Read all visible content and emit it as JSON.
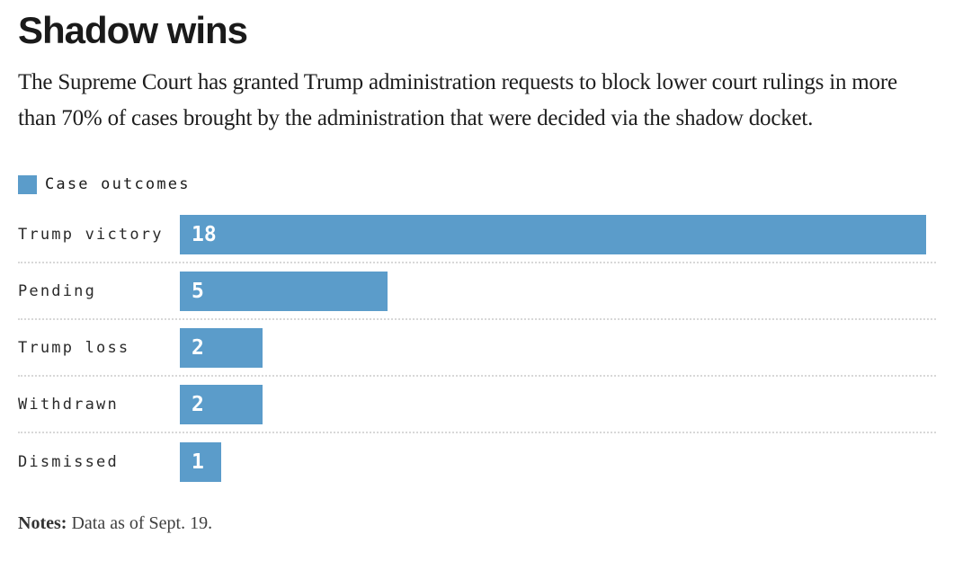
{
  "header": {
    "title": "Shadow wins",
    "subtitle": "The Supreme Court has granted Trump administration requests to block lower court rulings in more than 70% of cases brought by the administration that were decided via the shadow docket."
  },
  "legend": {
    "label": "Case outcomes",
    "swatch_color": "#5b9cca"
  },
  "chart_data": {
    "type": "bar",
    "orientation": "horizontal",
    "title": "Shadow wins",
    "categories": [
      "Trump victory",
      "Pending",
      "Trump loss",
      "Withdrawn",
      "Dismissed"
    ],
    "values": [
      18,
      5,
      2,
      2,
      1
    ],
    "xlim": [
      0,
      18
    ],
    "bar_color": "#5b9cca",
    "value_label_color": "#ffffff",
    "legend_entries": [
      "Case outcomes"
    ],
    "legend_position": "top-left",
    "grid": false,
    "value_labels_inside_bar": true
  },
  "notes": {
    "label": "Notes:",
    "text": "Data as of Sept. 19."
  }
}
